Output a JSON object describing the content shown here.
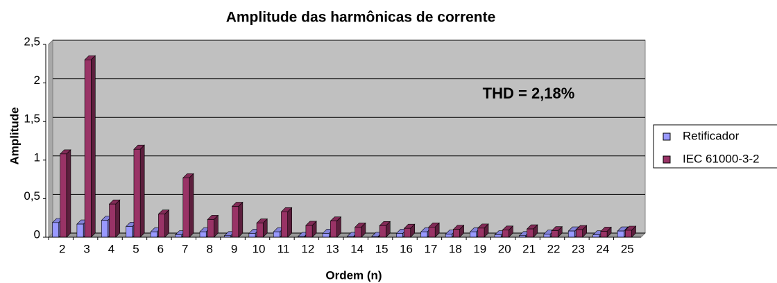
{
  "chart_data": {
    "type": "bar",
    "title": "Amplitude das harmônicas de corrente",
    "x_label": "Ordem (n)",
    "y_label": "Amplitude",
    "annotation": "THD = 2,18%",
    "categories": [
      "2",
      "3",
      "4",
      "5",
      "6",
      "7",
      "8",
      "9",
      "10",
      "11",
      "12",
      "13",
      "14",
      "15",
      "16",
      "17",
      "18",
      "19",
      "20",
      "21",
      "22",
      "23",
      "24",
      "25"
    ],
    "series": [
      {
        "name": "Retificador",
        "color": "#9999ff",
        "values": [
          0.19,
          0.17,
          0.22,
          0.14,
          0.07,
          0.03,
          0.07,
          0.02,
          0.05,
          0.07,
          0.01,
          0.05,
          0.01,
          0.01,
          0.05,
          0.07,
          0.04,
          0.07,
          0.03,
          0.02,
          0.04,
          0.08,
          0.03,
          0.08
        ]
      },
      {
        "name": "IEC 61000-3-2",
        "color": "#993366",
        "values": [
          1.08,
          2.3,
          0.43,
          1.14,
          0.3,
          0.77,
          0.23,
          0.4,
          0.184,
          0.33,
          0.153,
          0.21,
          0.131,
          0.15,
          0.115,
          0.132,
          0.102,
          0.118,
          0.092,
          0.107,
          0.084,
          0.098,
          0.077,
          0.09
        ]
      }
    ],
    "ylim": [
      0,
      2.5
    ],
    "yticks": [
      0,
      {
        "value": 0.5,
        "label": "0,5"
      },
      1,
      {
        "value": 1.5,
        "label": "1,5"
      },
      2,
      {
        "value": 2.5,
        "label": "2,5"
      }
    ],
    "grid": true,
    "legend": "right"
  }
}
